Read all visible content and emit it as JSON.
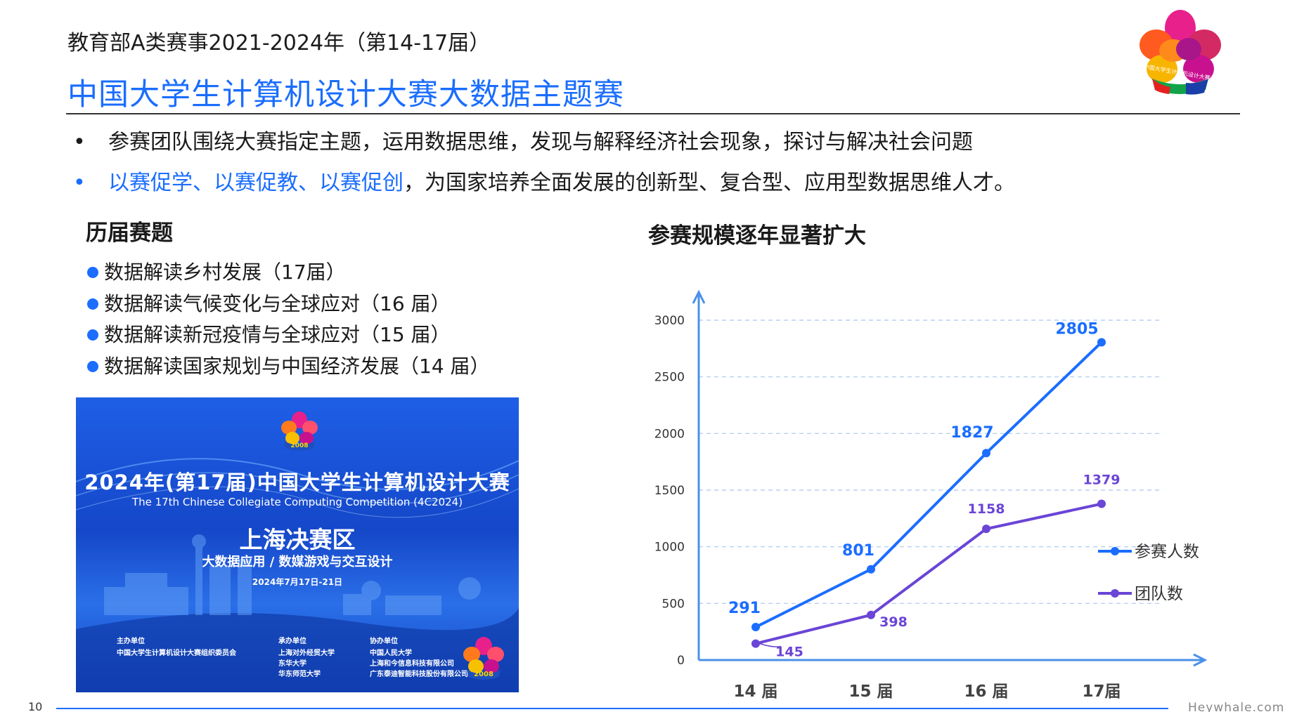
{
  "header": {
    "subtitle": "教育部A类赛事2021-2024年（第14-17届）",
    "title": "中国大学生计算机设计大赛大数据主题赛",
    "logo_text": "中国大学生计算机设计大赛"
  },
  "bullets": [
    {
      "dot": "•",
      "text": "参赛团队围绕大赛指定主题，运用数据思维，发现与解释经济社会现象，探讨与解决社会问题"
    },
    {
      "dot": "•",
      "highlight": "以赛促学、以赛促教、以赛促创",
      "text": "，为国家培养全面发展的创新型、复合型、应用型数据思维人才。"
    }
  ],
  "past_topics": {
    "heading": "历届赛题",
    "items": [
      "数据解读乡村发展（17届）",
      "数据解读气候变化与全球应对（16 届）",
      "数据解读新冠疫情与全球应对（15 届）",
      "数据解读国家规划与中国经济发展（14 届）"
    ]
  },
  "banner": {
    "badge_year": "2008",
    "title": "2024年(第17届)中国大学生计算机设计大赛",
    "subtitle_en": "The 17th Chinese Collegiate Computing Competition (4C2024)",
    "region": "上海决赛区",
    "tracks": "大数据应用 / 数媒游戏与交互设计",
    "date": "2024年7月17日-21日",
    "organizers": [
      {
        "heading": "主办单位",
        "lines": [
          "中国大学生计算机设计大赛组织委员会"
        ]
      },
      {
        "heading": "承办单位",
        "lines": [
          "上海对外经贸大学",
          "东华大学",
          "华东师范大学"
        ]
      },
      {
        "heading": "协办单位",
        "lines": [
          "中国人民大学",
          "上海和今信息科技有限公司",
          "广东泰迪智能科技股份有限公司"
        ]
      }
    ]
  },
  "chart_section": {
    "heading": "参赛规模逐年显著扩大"
  },
  "chart_data": {
    "type": "line",
    "title": "参赛规模逐年显著扩大",
    "categories": [
      "14 届",
      "15 届",
      "16 届",
      "17届"
    ],
    "ylim": [
      0,
      3000
    ],
    "yticks": [
      0,
      500,
      1000,
      1500,
      2000,
      2500,
      3000
    ],
    "grid": true,
    "legend_position": "right",
    "series": [
      {
        "name": "参赛人数",
        "values": [
          291,
          801,
          1827,
          2805
        ],
        "color": "#1a6dff"
      },
      {
        "name": "团队数",
        "values": [
          145,
          398,
          1158,
          1379
        ],
        "color": "#6a45d6"
      }
    ]
  },
  "footer": {
    "page_number": "10",
    "brand": "Heywhale.com"
  },
  "colors": {
    "accent": "#1a6dff",
    "secondary": "#6a45d6"
  }
}
